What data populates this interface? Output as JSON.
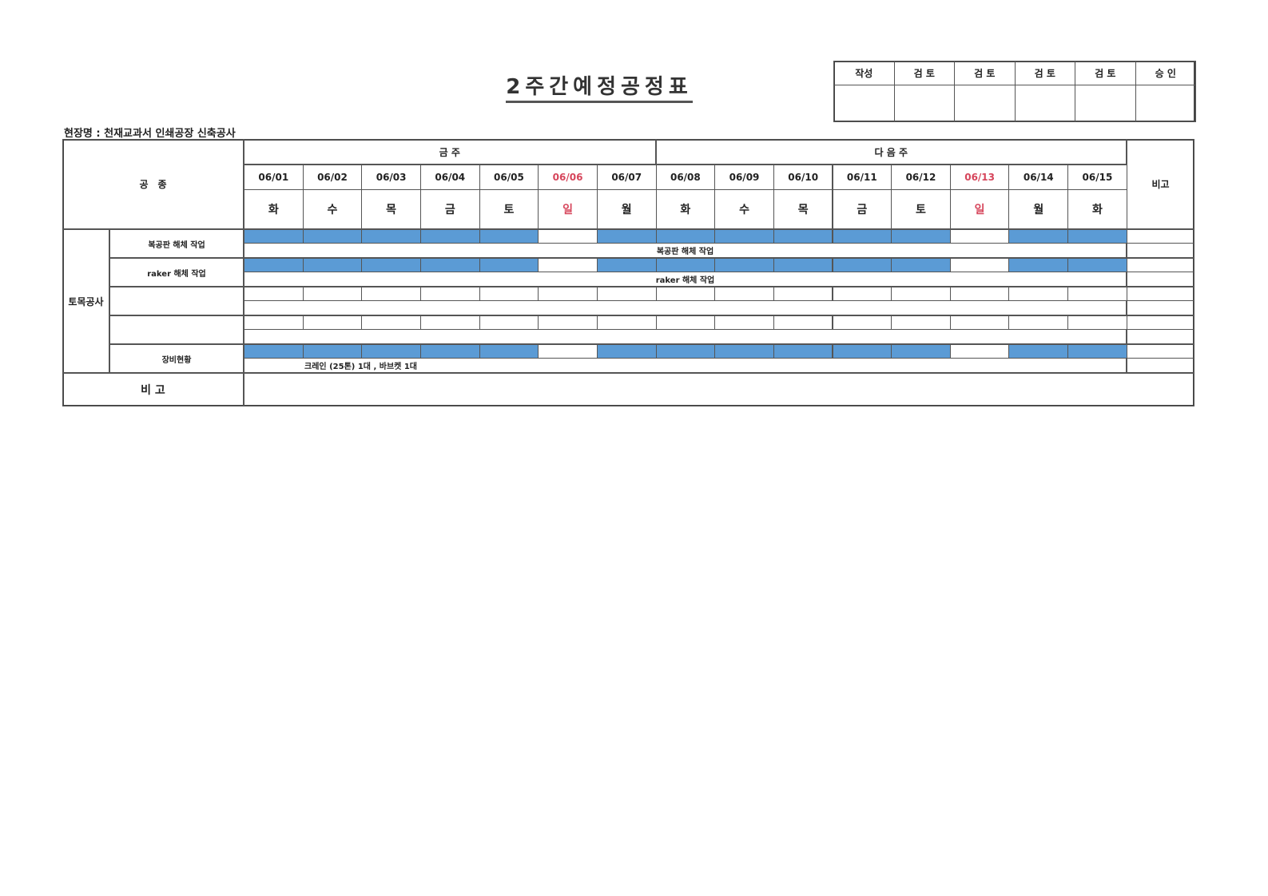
{
  "title": "2주간예정공정표",
  "site_label": "현장명 : 천재교과서 인쇄공장 신축공사",
  "approval": {
    "headers": [
      "작성",
      "검 토",
      "검 토",
      "검 토",
      "검 토",
      "승 인"
    ]
  },
  "table": {
    "trade_header": "공　종",
    "remarks_header": "비고",
    "week_labels": [
      "금 주",
      "다 음 주"
    ],
    "dates": [
      "06/01",
      "06/02",
      "06/03",
      "06/04",
      "06/05",
      "06/06",
      "06/07",
      "06/08",
      "06/09",
      "06/10",
      "06/11",
      "06/12",
      "06/13",
      "06/14",
      "06/15"
    ],
    "weekdays": [
      "화",
      "수",
      "목",
      "금",
      "토",
      "일",
      "월",
      "화",
      "수",
      "목",
      "금",
      "토",
      "일",
      "월",
      "화"
    ],
    "holidays": [
      "06/06",
      "06/13"
    ],
    "category": "토목공사",
    "rows": [
      {
        "label": "복공판 해체 작업",
        "note": "복공판 해체 작업",
        "active": [
          1,
          1,
          1,
          1,
          1,
          0,
          1,
          1,
          1,
          1,
          1,
          1,
          0,
          1,
          1
        ]
      },
      {
        "label": "raker 해체 작업",
        "note": "raker 해체 작업",
        "active": [
          1,
          1,
          1,
          1,
          1,
          0,
          1,
          1,
          1,
          1,
          1,
          1,
          0,
          1,
          1
        ]
      },
      {
        "label": "",
        "note": "",
        "active": [
          0,
          0,
          0,
          0,
          0,
          0,
          0,
          0,
          0,
          0,
          0,
          0,
          0,
          0,
          0
        ]
      },
      {
        "label": "",
        "note": "",
        "active": [
          0,
          0,
          0,
          0,
          0,
          0,
          0,
          0,
          0,
          0,
          0,
          0,
          0,
          0,
          0
        ]
      },
      {
        "label": "장비현황",
        "note": "크레인 (25톤) 1대 , 바브켓 1대",
        "active": [
          1,
          1,
          1,
          1,
          1,
          0,
          1,
          1,
          1,
          1,
          1,
          1,
          0,
          1,
          1
        ]
      }
    ],
    "footer_label": "비 고"
  },
  "colors": {
    "bar": "#5b9bd5",
    "holiday": "#d6455b"
  }
}
